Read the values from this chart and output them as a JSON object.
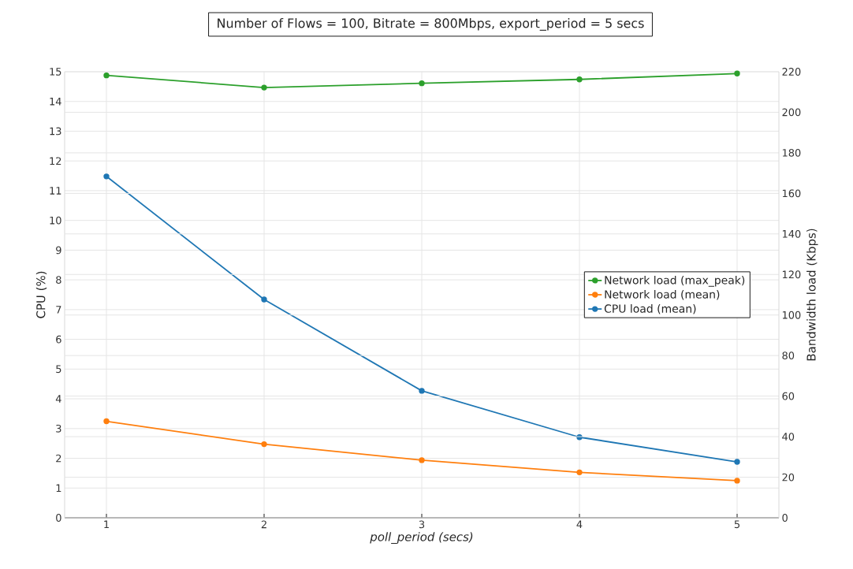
{
  "chart_data": {
    "type": "line",
    "title": "Number of Flows = 100, Bitrate = 800Mbps, export_period = 5 secs",
    "xlabel": "poll_period (secs)",
    "ylabel": "CPU (%)",
    "y2label": "Bandwidth load (Kbps)",
    "x": [
      1,
      2,
      3,
      4,
      5
    ],
    "series": [
      {
        "name": "Network load (max_peak)",
        "color": "#2ca02c",
        "axis": "y2",
        "values": [
          218.2,
          212.2,
          214.3,
          216.2,
          219.1
        ]
      },
      {
        "name": "Network load (mean)",
        "color": "#ff7f0e",
        "axis": "y2",
        "values": [
          47.6,
          36.3,
          28.4,
          22.4,
          18.3
        ]
      },
      {
        "name": "CPU load (mean)",
        "color": "#1f77b4",
        "axis": "y",
        "values": [
          11.48,
          7.34,
          4.27,
          2.71,
          1.88
        ]
      }
    ],
    "xlim": [
      0.735,
      5.265
    ],
    "xticks": [
      1,
      2,
      3,
      4,
      5
    ],
    "ylim": [
      0,
      15
    ],
    "yticks": [
      0,
      1,
      2,
      3,
      4,
      5,
      6,
      7,
      8,
      9,
      10,
      11,
      12,
      13,
      14,
      15
    ],
    "y2lim": [
      0,
      220
    ],
    "y2ticks": [
      0,
      20,
      40,
      60,
      80,
      100,
      120,
      140,
      160,
      180,
      200,
      220
    ],
    "grid": true,
    "legend": "right",
    "marker": "circle",
    "line_style": "solid"
  }
}
